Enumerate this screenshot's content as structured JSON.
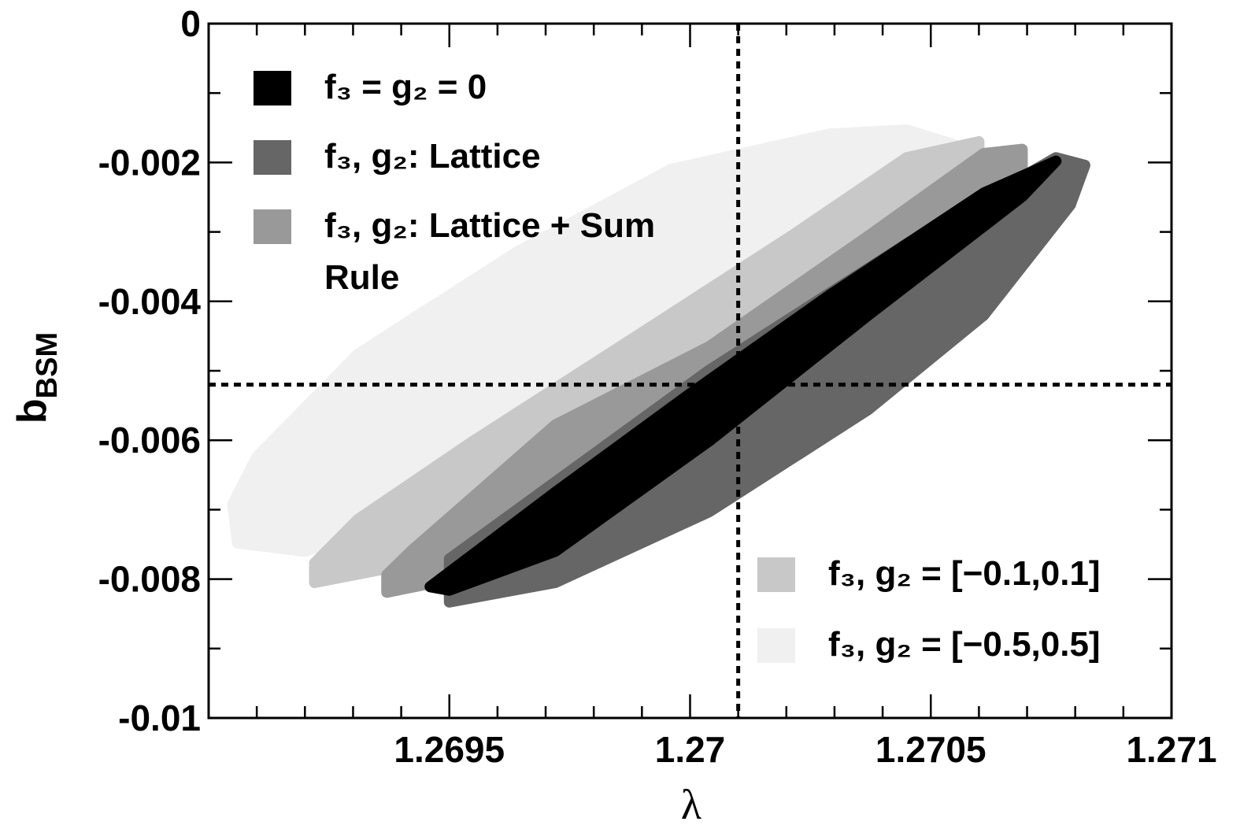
{
  "chart_data": {
    "type": "region",
    "xlabel": "λ",
    "ylabel": "b",
    "ylabel_subscript": "BSM",
    "xlim": [
      1.269,
      1.271
    ],
    "ylim": [
      -0.01,
      0
    ],
    "xticks": [
      1.2695,
      1.27,
      1.2705,
      1.271
    ],
    "yticks": [
      0,
      -0.002,
      -0.004,
      -0.006,
      -0.008,
      -0.01
    ],
    "xminorticks": [
      1.2691,
      1.2692,
      1.2693,
      1.2694,
      1.2696,
      1.2697,
      1.2698,
      1.2699,
      1.2701,
      1.2702,
      1.2703,
      1.2704,
      1.2706,
      1.2707,
      1.2708,
      1.2709
    ],
    "yminorticks": [
      -0.001,
      -0.003,
      -0.005,
      -0.007,
      -0.009
    ],
    "reference_lines": {
      "x": 1.2701,
      "y": -0.0052
    },
    "series": [
      {
        "name": "f₃, g₂ = [−0.5,0.5]",
        "color": "#f0f0f0",
        "legend": "lower right",
        "x": [
          1.26905,
          1.2691,
          1.26931,
          1.26964,
          1.26996,
          1.27029,
          1.27045,
          1.27058,
          1.27037,
          1.27004,
          1.26972,
          1.26939,
          1.2692,
          1.26906
        ],
        "y": [
          -0.00692,
          -0.00624,
          -0.00476,
          -0.00329,
          -0.0021,
          -0.00159,
          -0.00153,
          -0.00181,
          -0.00272,
          -0.0042,
          -0.00578,
          -0.00714,
          -0.0076,
          -0.00748
        ]
      },
      {
        "name": "f₃, g₂ = [−0.1,0.1]",
        "color": "#c8c8c8",
        "legend": "lower right",
        "x": [
          1.26922,
          1.26931,
          1.26955,
          1.26988,
          1.27021,
          1.27045,
          1.2706,
          1.2706,
          1.27037,
          1.27004,
          1.26972,
          1.26939,
          1.26922
        ],
        "y": [
          -0.00777,
          -0.00714,
          -0.00601,
          -0.00454,
          -0.00306,
          -0.00193,
          -0.0017,
          -0.00215,
          -0.00351,
          -0.0051,
          -0.00669,
          -0.00782,
          -0.00805
        ]
      },
      {
        "name": "f₃, g₂: Lattice + Sum Rule",
        "color": "#999999",
        "legend": "upper left",
        "x": [
          1.26937,
          1.26942,
          1.26972,
          1.27004,
          1.27037,
          1.27061,
          1.27069,
          1.27069,
          1.27053,
          1.27021,
          1.26988,
          1.26955,
          1.26937
        ],
        "y": [
          -0.00794,
          -0.0076,
          -0.00578,
          -0.00465,
          -0.00306,
          -0.00187,
          -0.00181,
          -0.00227,
          -0.0034,
          -0.00533,
          -0.00692,
          -0.00794,
          -0.00819
        ]
      },
      {
        "name": "f₃, g₂: Lattice",
        "color": "#666666",
        "legend": "upper left",
        "x": [
          1.2695,
          1.27004,
          1.27045,
          1.27076,
          1.27082,
          1.27079,
          1.27061,
          1.27037,
          1.27004,
          1.26972,
          1.2695
        ],
        "y": [
          -0.00771,
          -0.00499,
          -0.00317,
          -0.00193,
          -0.00204,
          -0.00261,
          -0.0042,
          -0.00556,
          -0.00703,
          -0.00805,
          -0.00833
        ]
      },
      {
        "name": "f₃ = g₂ = 0",
        "color": "#000000",
        "legend": "upper left",
        "x": [
          1.26946,
          1.26972,
          1.27,
          1.27029,
          1.27061,
          1.27076,
          1.27069,
          1.27037,
          1.27004,
          1.26972,
          1.2695
        ],
        "y": [
          -0.00811,
          -0.00675,
          -0.00533,
          -0.00391,
          -0.00244,
          -0.00198,
          -0.00249,
          -0.0042,
          -0.00601,
          -0.0076,
          -0.00816
        ]
      }
    ]
  }
}
